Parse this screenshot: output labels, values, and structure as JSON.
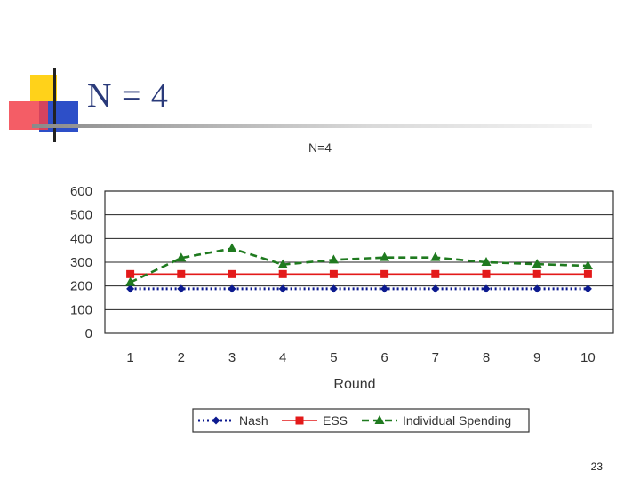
{
  "slide": {
    "title": "N = 4",
    "page_number": "23"
  },
  "colors": {
    "nash": "#0c1a8f",
    "ess": "#e31a1a",
    "individual": "#1f7a1f",
    "title": "#2a3a7a"
  },
  "chart_data": {
    "type": "line",
    "title": "N=4",
    "xlabel": "Round",
    "ylabel": "",
    "x": [
      1,
      2,
      3,
      4,
      5,
      6,
      7,
      8,
      9,
      10
    ],
    "ylim": [
      0,
      600
    ],
    "yticks": [
      0,
      100,
      200,
      300,
      400,
      500,
      600
    ],
    "grid": true,
    "legend_position": "bottom",
    "series": [
      {
        "name": "Nash",
        "values": [
          188,
          188,
          188,
          188,
          188,
          188,
          188,
          188,
          188,
          188
        ],
        "color": "#0c1a8f",
        "marker": "diamond",
        "line": "dotted"
      },
      {
        "name": "ESS",
        "values": [
          250,
          250,
          250,
          250,
          250,
          250,
          250,
          250,
          250,
          250
        ],
        "color": "#e31a1a",
        "marker": "square",
        "line": "solid"
      },
      {
        "name": "Individual Spending",
        "values": [
          215,
          318,
          358,
          290,
          310,
          320,
          320,
          300,
          292,
          285
        ],
        "color": "#1f7a1f",
        "marker": "triangle",
        "line": "dashed"
      }
    ]
  }
}
